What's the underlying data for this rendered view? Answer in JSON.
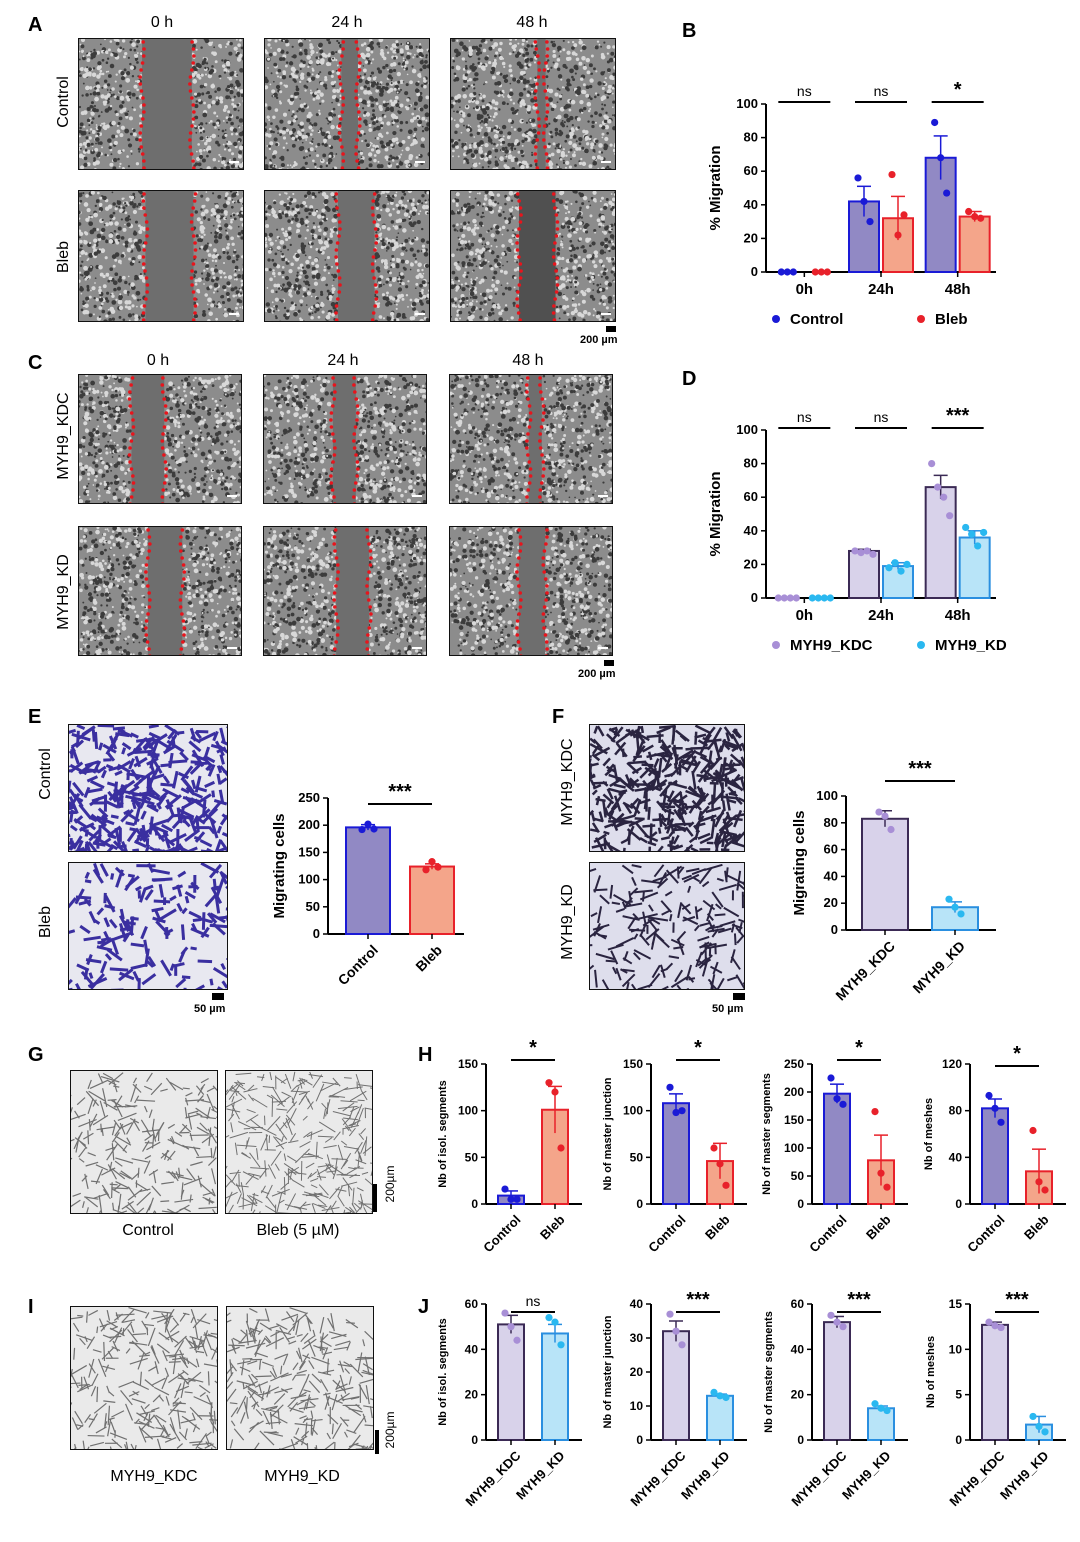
{
  "panels": {
    "A": "A",
    "B": "B",
    "C": "C",
    "D": "D",
    "E": "E",
    "F": "F",
    "G": "G",
    "H": "H",
    "I": "I",
    "J": "J"
  },
  "A": {
    "times": [
      "0 h",
      "24 h",
      "48 h"
    ],
    "rows": [
      "Control",
      "Bleb"
    ],
    "scale": "200 µm"
  },
  "C": {
    "times": [
      "0 h",
      "24 h",
      "48 h"
    ],
    "rows": [
      "MYH9_KDC",
      "MYH9_KD"
    ],
    "scale": "200 µm"
  },
  "E": {
    "rows": [
      "Control",
      "Bleb"
    ],
    "scale": "50 µm"
  },
  "F": {
    "rows": [
      "MYH9_KDC",
      "MYH9_KD"
    ],
    "scale": "50 µm"
  },
  "G": {
    "labels": [
      "Control",
      "Bleb (5 µM)"
    ],
    "scale": "200µm"
  },
  "I": {
    "labels": [
      "MYH9_KDC",
      "MYH9_KD"
    ],
    "scale": "200µm"
  },
  "colors": {
    "control_fill": "#9189c4",
    "control_stroke": "#1a1ad6",
    "control_dot": "#1a1ad6",
    "bleb_fill": "#f4a58a",
    "bleb_stroke": "#e8212a",
    "bleb_dot": "#e8212a",
    "kdc_fill": "#d8d2ea",
    "kdc_stroke": "#3b2a55",
    "kdc_dot": "#a88fd6",
    "kd_fill": "#b8e4f8",
    "kd_stroke": "#2a8fe0",
    "kd_dot": "#2ab8f0"
  },
  "chart_data": [
    {
      "id": "B",
      "type": "bar",
      "categories": [
        "0h",
        "24h",
        "48h"
      ],
      "ylabel": "% Migration",
      "ylim": [
        0,
        100
      ],
      "yticks": [
        0,
        20,
        40,
        60,
        80,
        100
      ],
      "series": [
        {
          "name": "Control",
          "values": [
            0,
            42,
            68
          ],
          "errors": [
            0,
            9,
            13
          ],
          "points": [
            [
              0,
              0,
              0
            ],
            [
              56,
              42,
              30
            ],
            [
              89,
              68,
              47
            ]
          ]
        },
        {
          "name": "Bleb",
          "values": [
            0,
            32,
            33
          ],
          "errors": [
            0,
            13,
            3
          ],
          "points": [
            [
              0,
              0,
              0
            ],
            [
              58,
              22,
              34
            ],
            [
              36,
              33,
              32
            ]
          ]
        }
      ],
      "significance": [
        "ns",
        "ns",
        "*"
      ],
      "legend": "bottom"
    },
    {
      "id": "D",
      "type": "bar",
      "categories": [
        "0h",
        "24h",
        "48h"
      ],
      "ylabel": "% Migration",
      "ylim": [
        0,
        100
      ],
      "yticks": [
        0,
        20,
        40,
        60,
        80,
        100
      ],
      "series": [
        {
          "name": "MYH9_KDC",
          "values": [
            0,
            28,
            66
          ],
          "errors": [
            0,
            1,
            7
          ],
          "points": [
            [
              0,
              0,
              0,
              0
            ],
            [
              28,
              27,
              28,
              26
            ],
            [
              80,
              66,
              60,
              49
            ]
          ]
        },
        {
          "name": "MYH9_KD",
          "values": [
            0,
            19,
            36
          ],
          "errors": [
            0,
            2,
            4
          ],
          "points": [
            [
              0,
              0,
              0,
              0
            ],
            [
              18,
              21,
              16,
              20
            ],
            [
              42,
              38,
              31,
              39
            ]
          ]
        }
      ],
      "significance": [
        "ns",
        "ns",
        "***"
      ],
      "legend": "bottom"
    },
    {
      "id": "E",
      "type": "bar",
      "categories": [
        "Control",
        "Bleb"
      ],
      "ylabel": "Migrating cells",
      "ylim": [
        0,
        250
      ],
      "yticks": [
        0,
        50,
        100,
        150,
        200,
        250
      ],
      "values": [
        196,
        124
      ],
      "errors": [
        5,
        5
      ],
      "points": [
        [
          192,
          202,
          193
        ],
        [
          118,
          133,
          123
        ]
      ],
      "significance": "***"
    },
    {
      "id": "F",
      "type": "bar",
      "categories": [
        "MYH9_KDC",
        "MYH9_KD"
      ],
      "ylabel": "Migrating cells",
      "ylim": [
        0,
        100
      ],
      "yticks": [
        0,
        20,
        40,
        60,
        80,
        100
      ],
      "values": [
        83,
        17
      ],
      "errors": [
        6,
        4
      ],
      "points": [
        [
          88,
          85,
          75
        ],
        [
          23,
          17,
          12
        ]
      ],
      "significance": "***"
    },
    {
      "id": "H1",
      "type": "bar",
      "categories": [
        "Control",
        "Bleb"
      ],
      "ylabel": "Nb of isol. segments",
      "ylim": [
        0,
        150
      ],
      "yticks": [
        0,
        50,
        100,
        150
      ],
      "values": [
        9,
        101
      ],
      "errors": [
        5,
        25
      ],
      "points": [
        [
          16,
          5,
          5
        ],
        [
          130,
          120,
          60
        ]
      ],
      "significance": "*"
    },
    {
      "id": "H2",
      "type": "bar",
      "categories": [
        "Control",
        "Bleb"
      ],
      "ylabel": "Nb of master junction",
      "ylim": [
        0,
        150
      ],
      "yticks": [
        0,
        50,
        100,
        150
      ],
      "values": [
        108,
        46
      ],
      "errors": [
        10,
        19
      ],
      "points": [
        [
          125,
          98,
          100
        ],
        [
          60,
          43,
          20
        ]
      ],
      "significance": "*"
    },
    {
      "id": "H3",
      "type": "bar",
      "categories": [
        "Control",
        "Bleb"
      ],
      "ylabel": "Nb of master segments",
      "ylim": [
        0,
        250
      ],
      "yticks": [
        0,
        50,
        100,
        150,
        200,
        250
      ],
      "values": [
        197,
        78
      ],
      "errors": [
        17,
        45
      ],
      "points": [
        [
          225,
          188,
          178
        ],
        [
          165,
          55,
          30
        ]
      ],
      "significance": "*"
    },
    {
      "id": "H4",
      "type": "bar",
      "categories": [
        "Control",
        "Bleb"
      ],
      "ylabel": "Nb of meshes",
      "ylim": [
        0,
        120
      ],
      "yticks": [
        0,
        40,
        80,
        120
      ],
      "values": [
        82,
        28
      ],
      "errors": [
        8,
        19
      ],
      "points": [
        [
          93,
          82,
          70
        ],
        [
          63,
          19,
          12
        ]
      ],
      "significance": "*"
    },
    {
      "id": "J1",
      "type": "bar",
      "categories": [
        "MYH9_KDC",
        "MYH9_KD"
      ],
      "ylabel": "Nb of isol. segments",
      "ylim": [
        0,
        60
      ],
      "yticks": [
        0,
        20,
        40,
        60
      ],
      "values": [
        51,
        47
      ],
      "errors": [
        4,
        4
      ],
      "points": [
        [
          56,
          50,
          44
        ],
        [
          54,
          52,
          42
        ]
      ],
      "significance": "ns"
    },
    {
      "id": "J2",
      "type": "bar",
      "categories": [
        "MYH9_KDC",
        "MYH9_KD"
      ],
      "ylabel": "Nb of master junction",
      "ylim": [
        0,
        40
      ],
      "yticks": [
        0,
        10,
        20,
        30,
        40
      ],
      "values": [
        32,
        13
      ],
      "errors": [
        3,
        0.5
      ],
      "points": [
        [
          37,
          32,
          28
        ],
        [
          14,
          13,
          12.5
        ]
      ],
      "significance": "***"
    },
    {
      "id": "J3",
      "type": "bar",
      "categories": [
        "MYH9_KDC",
        "MYH9_KD"
      ],
      "ylabel": "Nb of master segments",
      "ylim": [
        0,
        60
      ],
      "yticks": [
        0,
        20,
        40,
        60
      ],
      "values": [
        52,
        14
      ],
      "errors": [
        2.5,
        1
      ],
      "points": [
        [
          55,
          52,
          50
        ],
        [
          16,
          14,
          13
        ]
      ],
      "significance": "***"
    },
    {
      "id": "J4",
      "type": "bar",
      "categories": [
        "MYH9_KDC",
        "MYH9_KD"
      ],
      "ylabel": "Nb of meshes",
      "ylim": [
        0,
        15
      ],
      "yticks": [
        0,
        5,
        10,
        15
      ],
      "values": [
        12.7,
        1.7
      ],
      "errors": [
        0.3,
        0.9
      ],
      "points": [
        [
          13,
          12.6,
          12.4
        ],
        [
          2.6,
          1.5,
          0.9
        ]
      ],
      "significance": "***"
    }
  ]
}
